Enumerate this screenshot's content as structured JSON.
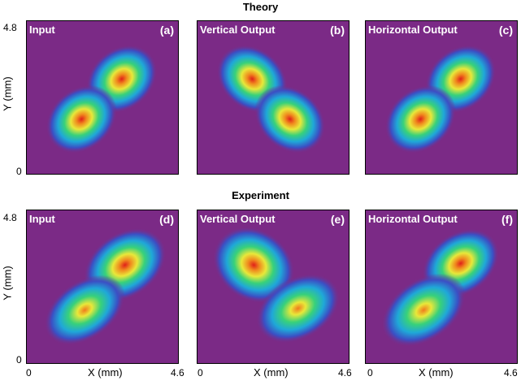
{
  "titles": {
    "top": "Theory",
    "bottom": "Experiment"
  },
  "axes": {
    "x_label": "X (mm)",
    "y_label": "Y (mm)",
    "x_min": "0",
    "x_max": "4.6",
    "y_min": "0",
    "y_max": "4.8"
  },
  "panels": [
    {
      "label": "Input",
      "letter": "(a)"
    },
    {
      "label": "Vertical Output",
      "letter": "(b)"
    },
    {
      "label": "Horizontal Output",
      "letter": "(c)"
    },
    {
      "label": "Input",
      "letter": "(d)"
    },
    {
      "label": "Vertical Output",
      "letter": "(e)"
    },
    {
      "label": "Horizontal Output",
      "letter": "(f)"
    }
  ],
  "colors": {
    "background": "#7b2a86",
    "colormap": [
      "#7b2a86",
      "#3b4fc4",
      "#1fa8d8",
      "#38d17a",
      "#e8e83a",
      "#f08a1e",
      "#e0201a"
    ]
  }
}
